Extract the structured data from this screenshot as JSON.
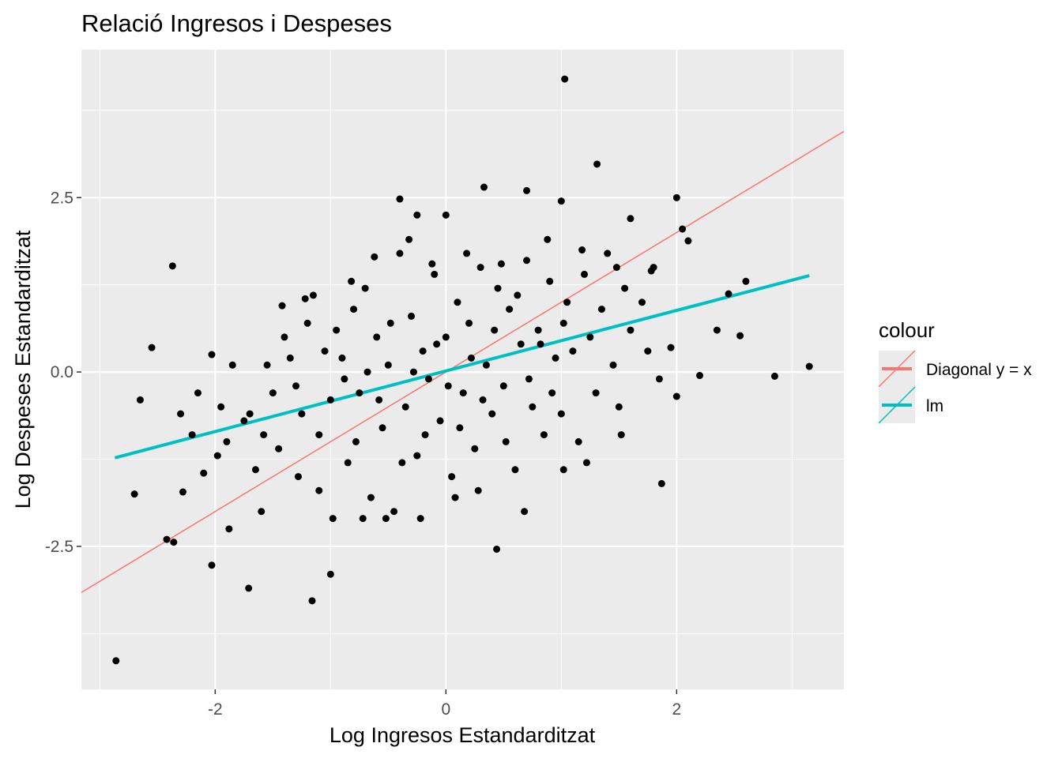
{
  "chart_data": {
    "type": "scatter",
    "title": "Relació Ingresos i Despeses",
    "xlabel": "Log Ingresos Estandarditzat",
    "ylabel": "Log Despeses Estandarditzat",
    "xlim": [
      -3.16,
      3.45
    ],
    "ylim": [
      -4.55,
      4.62
    ],
    "x_ticks": [
      {
        "value": -2,
        "label": "-2"
      },
      {
        "value": 0,
        "label": "0"
      },
      {
        "value": 2,
        "label": "2"
      }
    ],
    "y_ticks": [
      {
        "value": -2.5,
        "label": "-2.5"
      },
      {
        "value": 0,
        "label": "0.0"
      },
      {
        "value": 2.5,
        "label": "2.5"
      }
    ],
    "grid": true,
    "panel_background": "#EBEBEB",
    "point_color": "#000000",
    "legend": {
      "title": "colour",
      "placement": "right",
      "entries": [
        {
          "label": "Diagonal y = x",
          "color": "#F8766D"
        },
        {
          "label": "lm",
          "color": "#00BFC4"
        }
      ]
    },
    "lines": [
      {
        "name": "Diagonal y = x",
        "color": "#F8766D",
        "slope": 1,
        "intercept": 0,
        "x_range": [
          -3.16,
          3.45
        ]
      },
      {
        "name": "lm",
        "color": "#00BFC4",
        "slope": 0.434,
        "intercept": 0.015,
        "x_range": [
          -2.87,
          3.15
        ]
      }
    ],
    "points": [
      [
        1.03,
        4.2
      ],
      [
        1.31,
        2.98
      ],
      [
        -2.86,
        -4.14
      ],
      [
        -2.37,
        1.52
      ],
      [
        3.15,
        0.08
      ],
      [
        2.85,
        -0.06
      ],
      [
        -1.16,
        -3.28
      ],
      [
        0.44,
        -2.54
      ],
      [
        1.87,
        -1.6
      ],
      [
        -2.03,
        -2.77
      ],
      [
        -1.71,
        -3.1
      ],
      [
        -2.7,
        -1.75
      ],
      [
        -2.65,
        -0.4
      ],
      [
        -2.55,
        0.35
      ],
      [
        -2.42,
        -2.4
      ],
      [
        -2.36,
        -2.44
      ],
      [
        -1.0,
        -2.9
      ],
      [
        2.0,
        2.5
      ],
      [
        2.05,
        2.05
      ],
      [
        2.1,
        1.88
      ],
      [
        2.6,
        1.3
      ],
      [
        2.45,
        1.12
      ],
      [
        2.55,
        0.52
      ],
      [
        2.35,
        0.6
      ],
      [
        2.2,
        -0.05
      ],
      [
        2.0,
        -0.35
      ],
      [
        1.6,
        2.2
      ],
      [
        0.33,
        2.65
      ],
      [
        0.7,
        2.6
      ],
      [
        -0.4,
        2.48
      ],
      [
        1.0,
        2.45
      ],
      [
        0.0,
        2.25
      ],
      [
        -0.25,
        2.25
      ],
      [
        -2.03,
        0.25
      ],
      [
        -2.3,
        -0.6
      ],
      [
        -2.28,
        -1.72
      ],
      [
        -1.88,
        -2.25
      ],
      [
        -1.6,
        -2.0
      ],
      [
        -1.7,
        -0.6
      ],
      [
        -1.55,
        0.1
      ],
      [
        -1.4,
        0.5
      ],
      [
        -1.3,
        -0.2
      ],
      [
        -1.2,
        0.7
      ],
      [
        -1.1,
        -0.9
      ],
      [
        -1.05,
        0.3
      ],
      [
        -1.0,
        -0.4
      ],
      [
        -0.9,
        0.2
      ],
      [
        -0.85,
        -1.3
      ],
      [
        -0.8,
        0.9
      ],
      [
        -0.75,
        -0.3
      ],
      [
        -0.7,
        1.2
      ],
      [
        -0.65,
        -1.8
      ],
      [
        -0.6,
        0.5
      ],
      [
        -0.55,
        -0.8
      ],
      [
        -0.5,
        0.1
      ],
      [
        -0.45,
        -2.0
      ],
      [
        -0.4,
        1.7
      ],
      [
        -0.35,
        -0.5
      ],
      [
        -0.3,
        0.8
      ],
      [
        -0.25,
        -1.2
      ],
      [
        -0.2,
        0.3
      ],
      [
        -0.15,
        -0.1
      ],
      [
        -0.1,
        1.4
      ],
      [
        -0.05,
        -0.7
      ],
      [
        0.0,
        0.5
      ],
      [
        0.05,
        -1.5
      ],
      [
        0.1,
        1.0
      ],
      [
        0.15,
        -0.3
      ],
      [
        0.2,
        0.7
      ],
      [
        0.25,
        -1.1
      ],
      [
        0.3,
        1.5
      ],
      [
        0.35,
        0.1
      ],
      [
        0.4,
        -0.6
      ],
      [
        0.45,
        1.2
      ],
      [
        0.5,
        -0.2
      ],
      [
        0.55,
        0.9
      ],
      [
        0.6,
        -1.4
      ],
      [
        0.65,
        0.4
      ],
      [
        0.7,
        1.6
      ],
      [
        0.75,
        -0.5
      ],
      [
        0.8,
        0.6
      ],
      [
        0.85,
        -0.9
      ],
      [
        0.9,
        1.3
      ],
      [
        0.95,
        0.2
      ],
      [
        1.0,
        -0.6
      ],
      [
        1.05,
        1.0
      ],
      [
        1.1,
        0.3
      ],
      [
        1.15,
        -1.0
      ],
      [
        1.2,
        1.4
      ],
      [
        1.25,
        0.5
      ],
      [
        1.3,
        -0.3
      ],
      [
        1.35,
        0.9
      ],
      [
        1.4,
        1.7
      ],
      [
        1.45,
        0.1
      ],
      [
        1.5,
        -0.5
      ],
      [
        1.55,
        1.2
      ],
      [
        1.6,
        0.6
      ],
      [
        1.7,
        1.0
      ],
      [
        1.75,
        0.3
      ],
      [
        1.8,
        1.5
      ],
      [
        1.85,
        -0.1
      ],
      [
        1.95,
        0.35
      ],
      [
        -1.95,
        -0.5
      ],
      [
        -1.9,
        -1.0
      ],
      [
        -1.85,
        0.1
      ],
      [
        -1.75,
        -0.7
      ],
      [
        -1.65,
        -1.4
      ],
      [
        -1.5,
        -0.3
      ],
      [
        -1.45,
        -1.1
      ],
      [
        -1.35,
        0.2
      ],
      [
        -1.25,
        -0.6
      ],
      [
        -1.15,
        1.1
      ],
      [
        -1.1,
        -1.7
      ],
      [
        -0.95,
        0.6
      ],
      [
        -0.88,
        -0.1
      ],
      [
        -0.78,
        -1.0
      ],
      [
        -0.68,
        0.0
      ],
      [
        -0.58,
        -0.4
      ],
      [
        -0.48,
        0.7
      ],
      [
        -0.38,
        -1.3
      ],
      [
        -0.28,
        0.0
      ],
      [
        -0.18,
        -0.9
      ],
      [
        -0.08,
        0.4
      ],
      [
        0.02,
        -0.2
      ],
      [
        0.12,
        -0.8
      ],
      [
        0.22,
        0.2
      ],
      [
        0.32,
        -0.4
      ],
      [
        0.42,
        0.6
      ],
      [
        0.52,
        -1.0
      ],
      [
        0.62,
        1.1
      ],
      [
        0.72,
        -0.1
      ],
      [
        0.82,
        0.4
      ],
      [
        0.92,
        -0.3
      ],
      [
        1.02,
        0.7
      ],
      [
        -2.1,
        -1.45
      ],
      [
        -2.2,
        -0.9
      ],
      [
        -2.15,
        -0.3
      ],
      [
        -1.98,
        -1.2
      ],
      [
        -1.58,
        -0.9
      ],
      [
        -1.28,
        -1.5
      ],
      [
        -0.98,
        -2.1
      ],
      [
        -0.72,
        -2.1
      ],
      [
        -0.52,
        -2.1
      ],
      [
        -0.22,
        -2.1
      ],
      [
        0.08,
        -1.8
      ],
      [
        0.28,
        -1.7
      ],
      [
        0.68,
        -2.0
      ],
      [
        1.02,
        -1.4
      ],
      [
        1.22,
        -1.3
      ],
      [
        1.52,
        -0.9
      ],
      [
        -1.42,
        0.95
      ],
      [
        -1.22,
        1.05
      ],
      [
        -0.82,
        1.3
      ],
      [
        -0.62,
        1.65
      ],
      [
        -0.32,
        1.9
      ],
      [
        -0.12,
        1.55
      ],
      [
        0.18,
        1.7
      ],
      [
        0.48,
        1.55
      ],
      [
        0.88,
        1.9
      ],
      [
        1.18,
        1.75
      ],
      [
        1.48,
        1.5
      ],
      [
        1.78,
        1.45
      ]
    ]
  }
}
